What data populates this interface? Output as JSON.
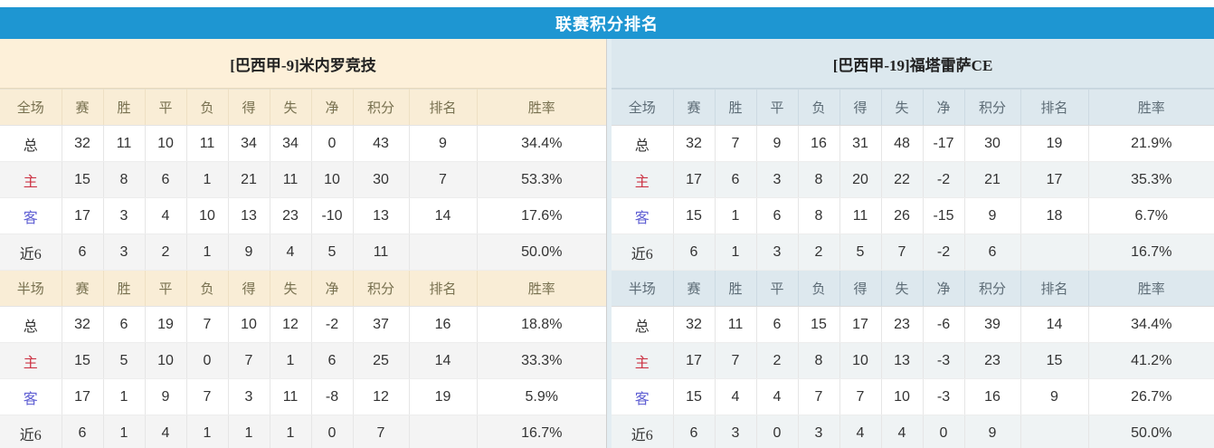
{
  "title_bar": {
    "title": "联赛积分排名"
  },
  "columns": {
    "full_label": "全场",
    "half_label": "半场",
    "stat_headers": [
      "赛",
      "胜",
      "平",
      "负",
      "得",
      "失",
      "净"
    ],
    "points_header": "积分",
    "rank_header": "排名",
    "rate_header": "胜率"
  },
  "colors": {
    "title_bar_bg": "#1e96d2",
    "left_theme_bg": "#fdf0d9",
    "right_theme_bg": "#dce8ee",
    "points_text": "#f0492f",
    "rank_text": "#3e86c8",
    "rate_text": "#f02a1e",
    "home_label_text": "#cc3344",
    "away_label_text": "#5f5fd3"
  },
  "teams": [
    {
      "name": "[巴西甲-9]米内罗竞技",
      "theme": "beige",
      "sections": [
        {
          "scope": "全场",
          "rows": [
            {
              "label": "总",
              "stats": [
                "32",
                "11",
                "10",
                "11",
                "34",
                "34",
                "0"
              ],
              "points": "43",
              "rank": "9",
              "rate": "34.4%"
            },
            {
              "label": "主",
              "stats": [
                "15",
                "8",
                "6",
                "1",
                "21",
                "11",
                "10"
              ],
              "points": "30",
              "rank": "7",
              "rate": "53.3%"
            },
            {
              "label": "客",
              "stats": [
                "17",
                "3",
                "4",
                "10",
                "13",
                "23",
                "-10"
              ],
              "points": "13",
              "rank": "14",
              "rate": "17.6%"
            },
            {
              "label": "近6",
              "stats": [
                "6",
                "3",
                "2",
                "1",
                "9",
                "4",
                "5"
              ],
              "points": "11",
              "rank": "",
              "rate": "50.0%"
            }
          ]
        },
        {
          "scope": "半场",
          "rows": [
            {
              "label": "总",
              "stats": [
                "32",
                "6",
                "19",
                "7",
                "10",
                "12",
                "-2"
              ],
              "points": "37",
              "rank": "16",
              "rate": "18.8%"
            },
            {
              "label": "主",
              "stats": [
                "15",
                "5",
                "10",
                "0",
                "7",
                "1",
                "6"
              ],
              "points": "25",
              "rank": "14",
              "rate": "33.3%"
            },
            {
              "label": "客",
              "stats": [
                "17",
                "1",
                "9",
                "7",
                "3",
                "11",
                "-8"
              ],
              "points": "12",
              "rank": "19",
              "rate": "5.9%"
            },
            {
              "label": "近6",
              "stats": [
                "6",
                "1",
                "4",
                "1",
                "1",
                "1",
                "0"
              ],
              "points": "7",
              "rank": "",
              "rate": "16.7%"
            }
          ]
        }
      ]
    },
    {
      "name": "[巴西甲-19]福塔雷萨CE",
      "theme": "blue",
      "sections": [
        {
          "scope": "全场",
          "rows": [
            {
              "label": "总",
              "stats": [
                "32",
                "7",
                "9",
                "16",
                "31",
                "48",
                "-17"
              ],
              "points": "30",
              "rank": "19",
              "rate": "21.9%"
            },
            {
              "label": "主",
              "stats": [
                "17",
                "6",
                "3",
                "8",
                "20",
                "22",
                "-2"
              ],
              "points": "21",
              "rank": "17",
              "rate": "35.3%"
            },
            {
              "label": "客",
              "stats": [
                "15",
                "1",
                "6",
                "8",
                "11",
                "26",
                "-15"
              ],
              "points": "9",
              "rank": "18",
              "rate": "6.7%"
            },
            {
              "label": "近6",
              "stats": [
                "6",
                "1",
                "3",
                "2",
                "5",
                "7",
                "-2"
              ],
              "points": "6",
              "rank": "",
              "rate": "16.7%"
            }
          ]
        },
        {
          "scope": "半场",
          "rows": [
            {
              "label": "总",
              "stats": [
                "32",
                "11",
                "6",
                "15",
                "17",
                "23",
                "-6"
              ],
              "points": "39",
              "rank": "14",
              "rate": "34.4%"
            },
            {
              "label": "主",
              "stats": [
                "17",
                "7",
                "2",
                "8",
                "10",
                "13",
                "-3"
              ],
              "points": "23",
              "rank": "15",
              "rate": "41.2%"
            },
            {
              "label": "客",
              "stats": [
                "15",
                "4",
                "4",
                "7",
                "7",
                "10",
                "-3"
              ],
              "points": "16",
              "rank": "9",
              "rate": "26.7%"
            },
            {
              "label": "近6",
              "stats": [
                "6",
                "3",
                "0",
                "3",
                "4",
                "4",
                "0"
              ],
              "points": "9",
              "rank": "",
              "rate": "50.0%"
            }
          ]
        }
      ]
    }
  ]
}
